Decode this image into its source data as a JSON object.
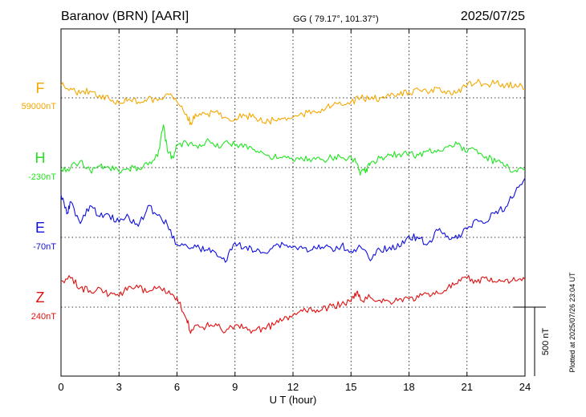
{
  "header": {
    "station": "Baranov (BRN)  [AARI]",
    "coords": "GG ( 79.17°, 101.37°)",
    "date": "2025/07/25"
  },
  "footer": {
    "plotted": "Plotted at 2025/07/26 23:04 UT"
  },
  "chart_data": {
    "type": "line",
    "title": "Baranov (BRN)  [AARI]",
    "xlabel": "U T (hour)",
    "xlim": [
      0,
      24
    ],
    "x_ticks": [
      0,
      3,
      6,
      9,
      12,
      15,
      18,
      21,
      24
    ],
    "scale_bar": {
      "label": "500 nT",
      "nT": 500
    },
    "series": [
      {
        "name": "F",
        "baseline_label": "59000nT",
        "baseline_nT": 59000,
        "color": "#f5a800",
        "x": [
          0,
          0.5,
          1,
          1.5,
          2,
          2.5,
          3,
          3.5,
          4,
          4.5,
          5,
          5.5,
          6,
          6.5,
          6.7,
          7,
          7.5,
          8,
          8.5,
          9,
          9.5,
          10,
          10.5,
          11,
          11.5,
          12,
          12.5,
          13,
          13.5,
          14,
          14.5,
          15,
          15.5,
          16,
          16.5,
          17,
          17.5,
          18,
          18.5,
          19,
          19.5,
          20,
          20.5,
          21,
          21.5,
          22,
          22.5,
          23,
          23.5,
          24
        ],
        "values": [
          59090,
          59070,
          59030,
          59050,
          59020,
          58990,
          58960,
          58990,
          58970,
          59000,
          58980,
          59030,
          58970,
          58880,
          58820,
          58870,
          58880,
          58900,
          58860,
          58850,
          58870,
          58860,
          58820,
          58840,
          58850,
          58860,
          58880,
          58900,
          58920,
          58940,
          58950,
          58970,
          59000,
          58990,
          59000,
          59010,
          59020,
          59040,
          59060,
          59030,
          59070,
          59050,
          59040,
          59090,
          59110,
          59100,
          59110,
          59090,
          59100,
          59060
        ]
      },
      {
        "name": "H",
        "baseline_label": "-230nT",
        "baseline_nT": -230,
        "color": "#22e522",
        "x": [
          0,
          0.5,
          1,
          1.5,
          2,
          2.5,
          3,
          3.5,
          4,
          4.5,
          5,
          5.3,
          5.5,
          5.8,
          6,
          6.5,
          7,
          7.5,
          8,
          8.5,
          9,
          9.5,
          10,
          10.5,
          11,
          11.5,
          12,
          12.5,
          13,
          13.5,
          14,
          14.5,
          15,
          15.3,
          15.5,
          15.8,
          16,
          16.5,
          17,
          17.5,
          18,
          18.5,
          19,
          19.5,
          20,
          20.5,
          21,
          21.5,
          22,
          22.5,
          23,
          23.5,
          24
        ],
        "values": [
          -240,
          -230,
          -180,
          -250,
          -220,
          -230,
          -260,
          -240,
          -230,
          -210,
          -150,
          80,
          -110,
          -160,
          -70,
          -50,
          -70,
          -40,
          -80,
          -40,
          -70,
          -60,
          -100,
          -130,
          -160,
          -150,
          -180,
          -170,
          -170,
          -170,
          -160,
          -160,
          -150,
          -200,
          -270,
          -240,
          -200,
          -160,
          -140,
          -130,
          -130,
          -140,
          -110,
          -100,
          -80,
          -60,
          -120,
          -100,
          -150,
          -190,
          -220,
          -250,
          -250
        ]
      },
      {
        "name": "E",
        "baseline_label": "-70nT",
        "baseline_nT": -70,
        "color": "#1010e0",
        "x": [
          0,
          0.3,
          0.5,
          1,
          1.5,
          2,
          2.5,
          3,
          3.5,
          4,
          4.5,
          5,
          5.5,
          6,
          6.5,
          7,
          7.5,
          8,
          8.5,
          9,
          9.5,
          10,
          10.5,
          11,
          11.5,
          12,
          12.5,
          13,
          13.5,
          14,
          14.5,
          15,
          15.5,
          16,
          16.5,
          17,
          17.5,
          18,
          18.5,
          19,
          19.5,
          20,
          20.5,
          21,
          21.5,
          22,
          22.5,
          23,
          23.5,
          24
        ],
        "values": [
          240,
          100,
          190,
          30,
          160,
          80,
          90,
          40,
          80,
          10,
          160,
          90,
          20,
          -120,
          -130,
          -140,
          -160,
          -180,
          -250,
          -110,
          -140,
          -170,
          -180,
          -130,
          -120,
          -140,
          -150,
          -160,
          -140,
          -150,
          -130,
          -170,
          -140,
          -240,
          -160,
          -140,
          -140,
          -60,
          -80,
          -110,
          -20,
          -60,
          -80,
          -10,
          60,
          40,
          120,
          150,
          260,
          360
        ]
      },
      {
        "name": "Z",
        "baseline_label": "240nT",
        "baseline_nT": 240,
        "color": "#e01010",
        "x": [
          0,
          0.5,
          1,
          1.5,
          2,
          2.5,
          3,
          3.5,
          4,
          4.5,
          5,
          5.5,
          6,
          6.5,
          6.7,
          7,
          7.5,
          8,
          8.5,
          9,
          9.5,
          10,
          10.5,
          11,
          11.5,
          12,
          12.5,
          13,
          13.5,
          14,
          14.5,
          15,
          15.3,
          15.5,
          16,
          16.5,
          17,
          17.5,
          18,
          18.5,
          19,
          19.5,
          20,
          20.5,
          21,
          21.5,
          22,
          22.5,
          23,
          23.5,
          24
        ],
        "values": [
          430,
          450,
          380,
          360,
          380,
          330,
          320,
          390,
          380,
          350,
          380,
          340,
          310,
          150,
          50,
          110,
          100,
          120,
          60,
          110,
          90,
          70,
          90,
          110,
          150,
          180,
          210,
          210,
          220,
          250,
          260,
          280,
          350,
          290,
          310,
          290,
          280,
          300,
          300,
          310,
          340,
          340,
          380,
          410,
          450,
          420,
          460,
          420,
          440,
          430,
          440
        ]
      }
    ]
  }
}
